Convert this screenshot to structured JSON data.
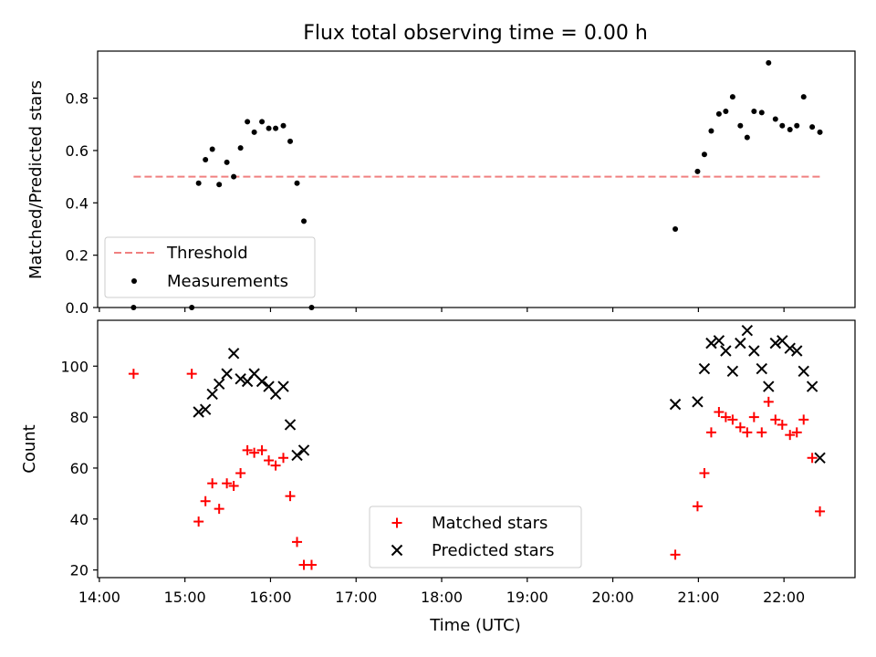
{
  "figure": {
    "title": "Flux total observing time = 0.00 h",
    "xlabel": "Time (UTC)",
    "x_ticks": [
      "14:00",
      "15:00",
      "16:00",
      "17:00",
      "18:00",
      "19:00",
      "20:00",
      "21:00",
      "22:00"
    ]
  },
  "colors": {
    "threshold": "#f08080",
    "measurements": "#000000",
    "matched": "#ff0000",
    "predicted": "#000000"
  },
  "chart_data": [
    {
      "type": "scatter",
      "ylabel": "Matched/Predicted stars",
      "x_unit": "hours UTC",
      "xlim": [
        13.98,
        22.83
      ],
      "ylim": [
        0.0,
        0.98
      ],
      "y_ticks": [
        0.0,
        0.2,
        0.4,
        0.6,
        0.8
      ],
      "y_tick_labels": [
        "0.0",
        "0.2",
        "0.4",
        "0.6",
        "0.8"
      ],
      "legend": {
        "placement": "lower-left",
        "entries": [
          "Threshold",
          "Measurements"
        ]
      },
      "threshold": {
        "name": "Threshold",
        "y": 0.5,
        "x_range": [
          14.4,
          22.42
        ]
      },
      "series": [
        {
          "name": "Measurements",
          "x": [
            14.4,
            15.08,
            15.16,
            15.24,
            15.32,
            15.4,
            15.49,
            15.57,
            15.65,
            15.73,
            15.81,
            15.9,
            15.98,
            16.06,
            16.15,
            16.23,
            16.31,
            16.39,
            16.48,
            20.73,
            20.99,
            21.07,
            21.15,
            21.24,
            21.32,
            21.4,
            21.49,
            21.57,
            21.65,
            21.74,
            21.82,
            21.9,
            21.98,
            22.07,
            22.15,
            22.23,
            22.33,
            22.42
          ],
          "y": [
            0.0,
            0.0,
            0.475,
            0.565,
            0.605,
            0.47,
            0.555,
            0.5,
            0.61,
            0.71,
            0.67,
            0.71,
            0.685,
            0.685,
            0.695,
            0.635,
            0.475,
            0.33,
            0.0,
            0.3,
            0.52,
            0.585,
            0.675,
            0.74,
            0.75,
            0.805,
            0.695,
            0.65,
            0.75,
            0.745,
            0.935,
            0.72,
            0.695,
            0.68,
            0.695,
            0.805,
            0.69,
            0.67
          ]
        }
      ]
    },
    {
      "type": "scatter",
      "ylabel": "Count",
      "x_unit": "hours UTC",
      "xlim": [
        13.98,
        22.83
      ],
      "ylim": [
        17,
        118
      ],
      "y_ticks": [
        20,
        40,
        60,
        80,
        100
      ],
      "y_tick_labels": [
        "20",
        "40",
        "60",
        "80",
        "100"
      ],
      "legend": {
        "placement": "lower-center",
        "entries": [
          "Matched stars",
          "Predicted stars"
        ]
      },
      "series": [
        {
          "name": "Matched stars",
          "marker": "plus",
          "x": [
            14.4,
            15.08,
            15.16,
            15.24,
            15.32,
            15.4,
            15.49,
            15.57,
            15.65,
            15.73,
            15.81,
            15.9,
            15.98,
            16.06,
            16.15,
            16.23,
            16.31,
            16.39,
            16.48,
            20.73,
            20.99,
            21.07,
            21.15,
            21.24,
            21.32,
            21.4,
            21.49,
            21.57,
            21.65,
            21.74,
            21.82,
            21.9,
            21.98,
            22.07,
            22.15,
            22.23,
            22.33,
            22.42
          ],
          "y": [
            97,
            97,
            39,
            47,
            54,
            44,
            54,
            53,
            58,
            67,
            66,
            67,
            63,
            61,
            64,
            49,
            31,
            22,
            22,
            26,
            45,
            58,
            74,
            82,
            80,
            79,
            76,
            74,
            80,
            74,
            86,
            79,
            77,
            73,
            74,
            79,
            64,
            43
          ]
        },
        {
          "name": "Predicted stars",
          "marker": "x",
          "x": [
            15.16,
            15.24,
            15.32,
            15.4,
            15.49,
            15.57,
            15.65,
            15.73,
            15.81,
            15.9,
            15.98,
            16.06,
            16.15,
            16.23,
            16.31,
            16.39,
            20.73,
            20.99,
            21.07,
            21.15,
            21.24,
            21.32,
            21.4,
            21.49,
            21.57,
            21.65,
            21.74,
            21.82,
            21.9,
            21.98,
            22.07,
            22.15,
            22.23,
            22.33,
            22.42
          ],
          "y": [
            82,
            83,
            89,
            93,
            97,
            105,
            95,
            94,
            97,
            94,
            92,
            89,
            92,
            77,
            65,
            67,
            85,
            86,
            99,
            109,
            110,
            106,
            98,
            109,
            114,
            106,
            99,
            92,
            109,
            110,
            107,
            106,
            98,
            92,
            64
          ]
        }
      ]
    }
  ]
}
